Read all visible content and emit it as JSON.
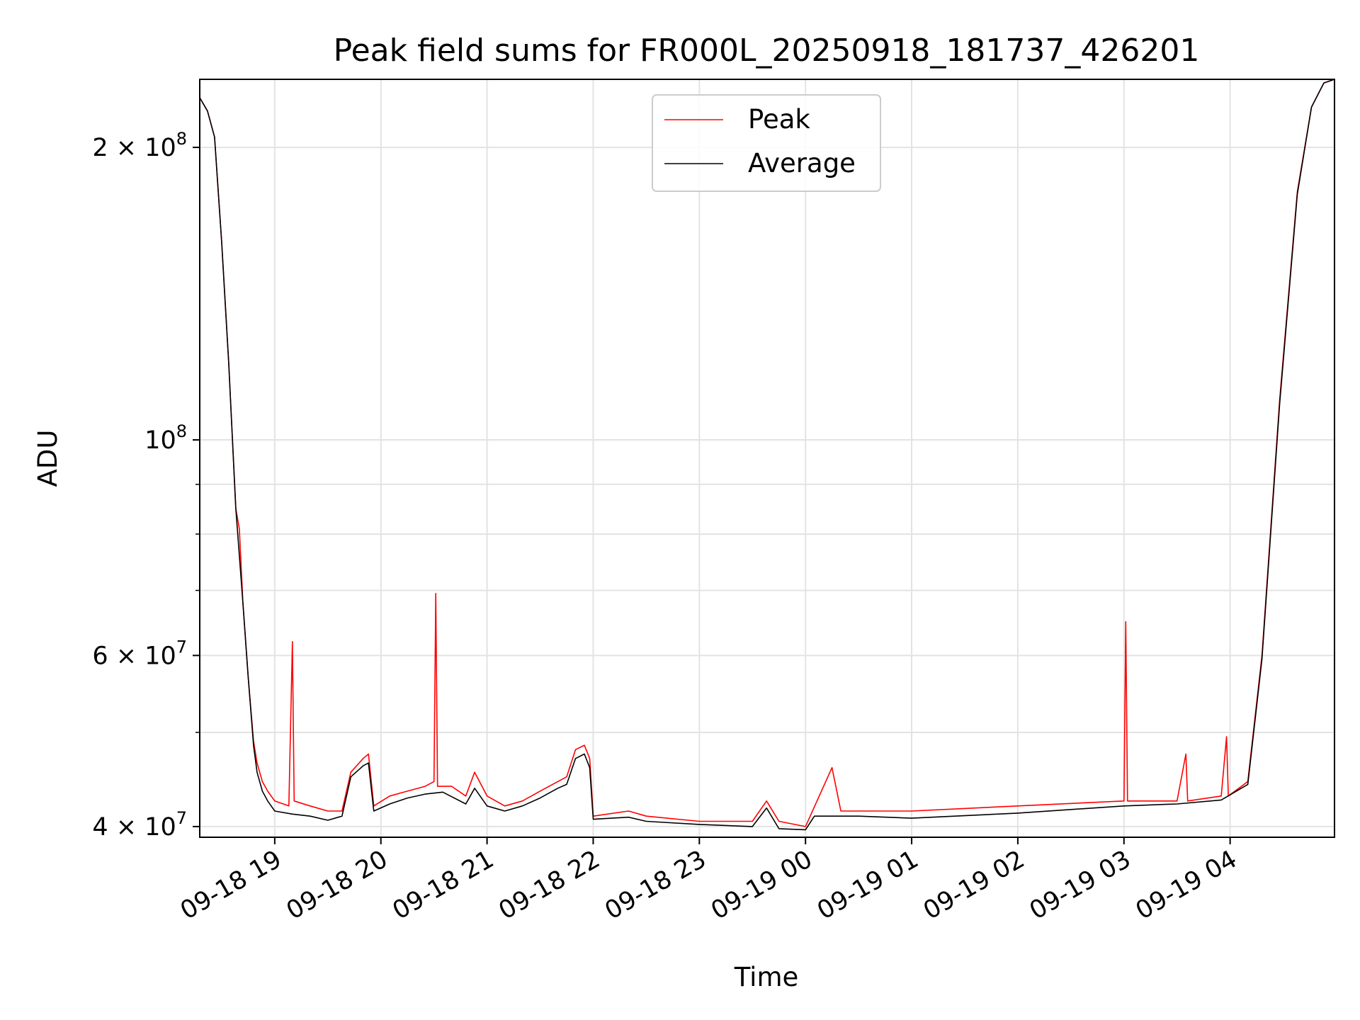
{
  "chart_data": {
    "type": "line",
    "title": "Peak field sums for FR000L_20250918_181737_426201",
    "xlabel": "Time",
    "ylabel": "ADU",
    "y_scale": "log",
    "ylim": [
      39000000,
      235000000
    ],
    "xlim": [
      "2025-09-18 18:17:37",
      "2025-09-19 04:59:00"
    ],
    "grid": true,
    "legend": "upper center",
    "x_ticks": [
      {
        "t": "2025-09-18 19:00",
        "label": "09-18 19"
      },
      {
        "t": "2025-09-18 20:00",
        "label": "09-18 20"
      },
      {
        "t": "2025-09-18 21:00",
        "label": "09-18 21"
      },
      {
        "t": "2025-09-18 22:00",
        "label": "09-18 22"
      },
      {
        "t": "2025-09-18 23:00",
        "label": "09-18 23"
      },
      {
        "t": "2025-09-19 00:00",
        "label": "09-19 00"
      },
      {
        "t": "2025-09-19 01:00",
        "label": "09-19 01"
      },
      {
        "t": "2025-09-19 02:00",
        "label": "09-19 02"
      },
      {
        "t": "2025-09-19 03:00",
        "label": "09-19 03"
      },
      {
        "t": "2025-09-19 04:00",
        "label": "09-19 04"
      }
    ],
    "y_ticks_major": [
      {
        "value": 40000000,
        "mantissa": "4",
        "exponent": "7"
      },
      {
        "value": 60000000,
        "mantissa": "6",
        "exponent": "7"
      },
      {
        "value": 100000000,
        "mantissa": "",
        "exponent": "8"
      },
      {
        "value": 200000000,
        "mantissa": "2",
        "exponent": "8"
      }
    ],
    "y_ticks_minor": [
      50000000,
      70000000,
      80000000,
      90000000
    ],
    "series": [
      {
        "name": "Peak",
        "color": "#ff0000",
        "points": [
          [
            "2025-09-18 18:17:37",
            225000000
          ],
          [
            "2025-09-18 18:22",
            218000000
          ],
          [
            "2025-09-18 18:26",
            205000000
          ],
          [
            "2025-09-18 18:30",
            160000000
          ],
          [
            "2025-09-18 18:34",
            120000000
          ],
          [
            "2025-09-18 18:38",
            85000000
          ],
          [
            "2025-09-18 18:40",
            81000000
          ],
          [
            "2025-09-18 18:42",
            68000000
          ],
          [
            "2025-09-18 18:45",
            57000000
          ],
          [
            "2025-09-18 18:48",
            49000000
          ],
          [
            "2025-09-18 18:50",
            46500000
          ],
          [
            "2025-09-18 18:53",
            44500000
          ],
          [
            "2025-09-18 18:56",
            43500000
          ],
          [
            "2025-09-18 19:00",
            42500000
          ],
          [
            "2025-09-18 19:08",
            42000000
          ],
          [
            "2025-09-18 19:10",
            62000000
          ],
          [
            "2025-09-18 19:11",
            42500000
          ],
          [
            "2025-09-18 19:20",
            42000000
          ],
          [
            "2025-09-18 19:30",
            41500000
          ],
          [
            "2025-09-18 19:38",
            41500000
          ],
          [
            "2025-09-18 19:43",
            45500000
          ],
          [
            "2025-09-18 19:50",
            47000000
          ],
          [
            "2025-09-18 19:53",
            47500000
          ],
          [
            "2025-09-18 19:56",
            42000000
          ],
          [
            "2025-09-18 20:05",
            43000000
          ],
          [
            "2025-09-18 20:15",
            43500000
          ],
          [
            "2025-09-18 20:25",
            44000000
          ],
          [
            "2025-09-18 20:30",
            44500000
          ],
          [
            "2025-09-18 20:31",
            69500000
          ],
          [
            "2025-09-18 20:32",
            44000000
          ],
          [
            "2025-09-18 20:40",
            44000000
          ],
          [
            "2025-09-18 20:48",
            43000000
          ],
          [
            "2025-09-18 20:53",
            45500000
          ],
          [
            "2025-09-18 21:00",
            43000000
          ],
          [
            "2025-09-18 21:10",
            42000000
          ],
          [
            "2025-09-18 21:20",
            42500000
          ],
          [
            "2025-09-18 21:30",
            43500000
          ],
          [
            "2025-09-18 21:40",
            44500000
          ],
          [
            "2025-09-18 21:45",
            45000000
          ],
          [
            "2025-09-18 21:50",
            48000000
          ],
          [
            "2025-09-18 21:55",
            48500000
          ],
          [
            "2025-09-18 21:58",
            47000000
          ],
          [
            "2025-09-18 22:00",
            41000000
          ],
          [
            "2025-09-18 22:20",
            41500000
          ],
          [
            "2025-09-18 22:30",
            41000000
          ],
          [
            "2025-09-18 23:00",
            40500000
          ],
          [
            "2025-09-18 23:30",
            40500000
          ],
          [
            "2025-09-18 23:38",
            42500000
          ],
          [
            "2025-09-18 23:45",
            40500000
          ],
          [
            "2025-09-19 00:00",
            40000000
          ],
          [
            "2025-09-19 00:15",
            46000000
          ],
          [
            "2025-09-19 00:20",
            41500000
          ],
          [
            "2025-09-19 01:00",
            41500000
          ],
          [
            "2025-09-19 02:00",
            42000000
          ],
          [
            "2025-09-19 03:00",
            42500000
          ],
          [
            "2025-09-19 03:01",
            65000000
          ],
          [
            "2025-09-19 03:02",
            42500000
          ],
          [
            "2025-09-19 03:30",
            42500000
          ],
          [
            "2025-09-19 03:35",
            47500000
          ],
          [
            "2025-09-19 03:36",
            42500000
          ],
          [
            "2025-09-19 03:55",
            43000000
          ],
          [
            "2025-09-19 03:58",
            49500000
          ],
          [
            "2025-09-19 03:59",
            43000000
          ],
          [
            "2025-09-19 04:10",
            44500000
          ],
          [
            "2025-09-19 04:18",
            60000000
          ],
          [
            "2025-09-19 04:28",
            110000000
          ],
          [
            "2025-09-19 04:38",
            180000000
          ],
          [
            "2025-09-19 04:46",
            220000000
          ],
          [
            "2025-09-19 04:53",
            233000000
          ],
          [
            "2025-09-19 04:59",
            235000000
          ]
        ]
      },
      {
        "name": "Average",
        "color": "#000000",
        "points": [
          [
            "2025-09-18 18:17:37",
            225000000
          ],
          [
            "2025-09-18 18:22",
            218000000
          ],
          [
            "2025-09-18 18:26",
            205000000
          ],
          [
            "2025-09-18 18:30",
            160000000
          ],
          [
            "2025-09-18 18:34",
            120000000
          ],
          [
            "2025-09-18 18:38",
            85000000
          ],
          [
            "2025-09-18 18:42",
            68000000
          ],
          [
            "2025-09-18 18:45",
            57000000
          ],
          [
            "2025-09-18 18:48",
            48500000
          ],
          [
            "2025-09-18 18:50",
            45500000
          ],
          [
            "2025-09-18 18:53",
            43500000
          ],
          [
            "2025-09-18 18:56",
            42500000
          ],
          [
            "2025-09-18 19:00",
            41500000
          ],
          [
            "2025-09-18 19:10",
            41200000
          ],
          [
            "2025-09-18 19:20",
            41000000
          ],
          [
            "2025-09-18 19:30",
            40600000
          ],
          [
            "2025-09-18 19:38",
            41000000
          ],
          [
            "2025-09-18 19:43",
            45000000
          ],
          [
            "2025-09-18 19:50",
            46200000
          ],
          [
            "2025-09-18 19:53",
            46500000
          ],
          [
            "2025-09-18 19:56",
            41500000
          ],
          [
            "2025-09-18 20:05",
            42200000
          ],
          [
            "2025-09-18 20:15",
            42800000
          ],
          [
            "2025-09-18 20:25",
            43200000
          ],
          [
            "2025-09-18 20:35",
            43400000
          ],
          [
            "2025-09-18 20:48",
            42200000
          ],
          [
            "2025-09-18 20:53",
            43800000
          ],
          [
            "2025-09-18 21:00",
            42000000
          ],
          [
            "2025-09-18 21:10",
            41500000
          ],
          [
            "2025-09-18 21:20",
            42000000
          ],
          [
            "2025-09-18 21:30",
            42800000
          ],
          [
            "2025-09-18 21:40",
            43800000
          ],
          [
            "2025-09-18 21:45",
            44200000
          ],
          [
            "2025-09-18 21:50",
            47000000
          ],
          [
            "2025-09-18 21:55",
            47500000
          ],
          [
            "2025-09-18 21:58",
            46000000
          ],
          [
            "2025-09-18 22:00",
            40700000
          ],
          [
            "2025-09-18 22:20",
            40900000
          ],
          [
            "2025-09-18 22:30",
            40500000
          ],
          [
            "2025-09-18 23:00",
            40200000
          ],
          [
            "2025-09-18 23:30",
            40000000
          ],
          [
            "2025-09-18 23:38",
            41800000
          ],
          [
            "2025-09-18 23:45",
            39800000
          ],
          [
            "2025-09-19 00:00",
            39700000
          ],
          [
            "2025-09-19 00:05",
            41000000
          ],
          [
            "2025-09-19 00:30",
            41000000
          ],
          [
            "2025-09-19 01:00",
            40800000
          ],
          [
            "2025-09-19 02:00",
            41300000
          ],
          [
            "2025-09-19 03:00",
            42000000
          ],
          [
            "2025-09-19 03:30",
            42200000
          ],
          [
            "2025-09-19 03:55",
            42600000
          ],
          [
            "2025-09-19 04:10",
            44200000
          ],
          [
            "2025-09-19 04:18",
            59500000
          ],
          [
            "2025-09-19 04:28",
            109000000
          ],
          [
            "2025-09-19 04:38",
            179000000
          ],
          [
            "2025-09-19 04:46",
            220000000
          ],
          [
            "2025-09-19 04:53",
            233000000
          ],
          [
            "2025-09-19 04:59",
            235000000
          ]
        ]
      }
    ]
  }
}
